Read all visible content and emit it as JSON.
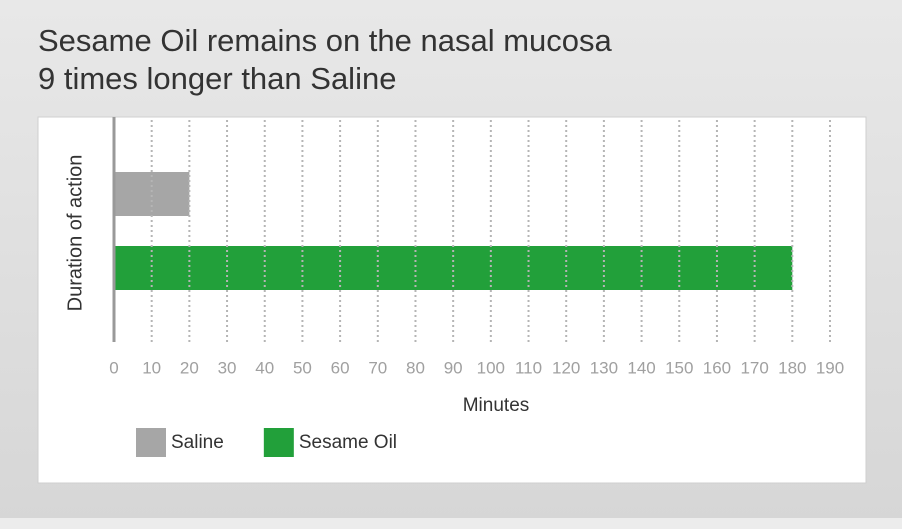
{
  "chart_data": {
    "type": "bar",
    "orientation": "horizontal",
    "title": [
      "Sesame Oil remains on the nasal mucosa",
      "9 times longer than Saline"
    ],
    "y_label": "Duration of action",
    "x_label": "Minutes",
    "categories": [
      null
    ],
    "series": [
      {
        "name": "Saline",
        "color": "#a6a6a6",
        "values": [
          20
        ]
      },
      {
        "name": "Sesame Oil",
        "color": "#22a03a",
        "values": [
          180
        ]
      }
    ],
    "xlim": [
      0,
      190
    ],
    "xticks": [
      0,
      10,
      20,
      30,
      40,
      50,
      60,
      70,
      80,
      90,
      100,
      110,
      120,
      130,
      140,
      150,
      160,
      170,
      180,
      190
    ],
    "grid": true,
    "legend": "bottom-left"
  }
}
